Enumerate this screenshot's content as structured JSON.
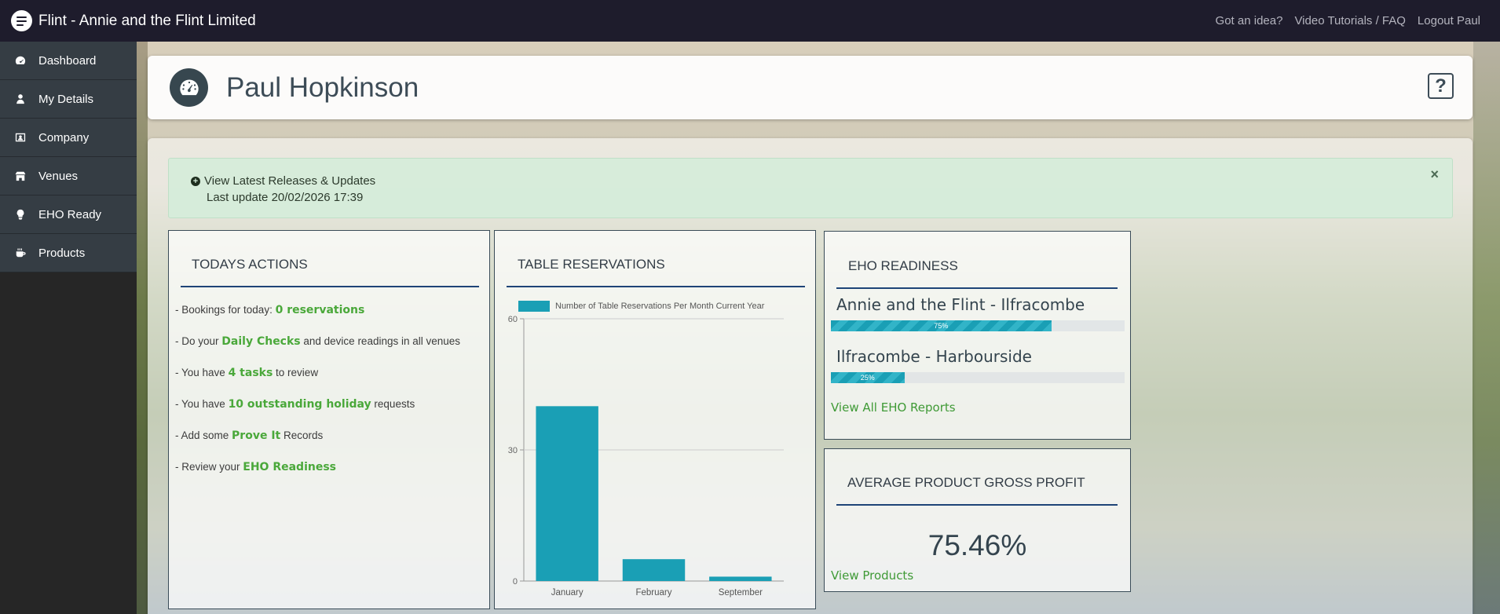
{
  "app": {
    "title": "Flint - Annie and the Flint Limited",
    "top_links": [
      "Got an idea?",
      "Video Tutorials / FAQ",
      "Logout Paul"
    ]
  },
  "sidebar": {
    "items": [
      {
        "label": "Dashboard",
        "icon": "dashboard-icon"
      },
      {
        "label": "My Details",
        "icon": "user-icon"
      },
      {
        "label": "Company",
        "icon": "company-icon"
      },
      {
        "label": "Venues",
        "icon": "building-icon"
      },
      {
        "label": "EHO Ready",
        "icon": "lightbulb-icon"
      },
      {
        "label": "Products",
        "icon": "coffee-icon"
      }
    ]
  },
  "header": {
    "title": "Paul Hopkinson",
    "help_label": "?"
  },
  "alert": {
    "link_text": "View Latest Releases & Updates",
    "last_update": "Last update 20/02/2026 17:39",
    "close_label": "×"
  },
  "todays_actions": {
    "title": "TODAYS ACTIONS",
    "lines": [
      {
        "pre": "- Bookings for today: ",
        "link": "0 reservations",
        "post": ""
      },
      {
        "pre": "- Do your ",
        "link": "Daily Checks",
        "post": " and device readings in all venues"
      },
      {
        "pre": "- You have ",
        "link": "4 tasks",
        "post": " to review"
      },
      {
        "pre": "- You have ",
        "link": "10 outstanding holiday",
        "post": " requests"
      },
      {
        "pre": "- Add some ",
        "link": "Prove It",
        "post": " Records"
      },
      {
        "pre": "- Review your ",
        "link": "EHO Readiness",
        "post": ""
      }
    ]
  },
  "table_reservations": {
    "title": "TABLE RESERVATIONS"
  },
  "chart_data": {
    "type": "bar",
    "categories": [
      "January",
      "February",
      "September"
    ],
    "series": [
      {
        "name": "Number of Table Reservations Per Month Current Year",
        "values": [
          40,
          5,
          1
        ]
      }
    ],
    "ylim": [
      0,
      60
    ],
    "yticks": [
      "0",
      "30",
      "60"
    ],
    "color": "#1a9fb5",
    "legend": "top",
    "grid": true
  },
  "eho_readiness": {
    "title": "EHO READINESS",
    "venues": [
      {
        "name": "Annie and the Flint - Ilfracombe",
        "percent": 0.75,
        "label": "75%"
      },
      {
        "name": "Ilfracombe - Harbourside",
        "percent": 0.25,
        "label": "25%"
      }
    ],
    "link": "View All EHO Reports"
  },
  "gross_profit": {
    "title": "AVERAGE PRODUCT GROSS PROFIT",
    "value": "75.46%",
    "link": "View Products"
  },
  "colors": {
    "topbar": "#1e1c2c",
    "accent_green": "#4aa83a",
    "bar": "#1a9fb5",
    "rule": "#1e4477"
  }
}
